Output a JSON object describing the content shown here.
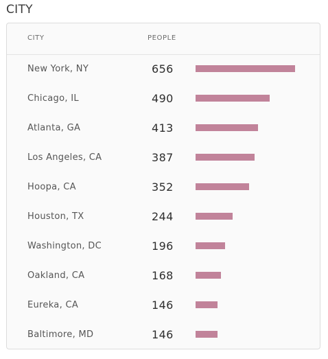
{
  "title": "CITY",
  "table": {
    "col_city": "CITY",
    "col_people": "PEOPLE",
    "bar_color": "#c1839a",
    "max_value": 656,
    "rows": [
      {
        "city": "New York, NY",
        "people": "656",
        "value": 656
      },
      {
        "city": "Chicago, IL",
        "people": "490",
        "value": 490
      },
      {
        "city": "Atlanta, GA",
        "people": "413",
        "value": 413
      },
      {
        "city": "Los Angeles, CA",
        "people": "387",
        "value": 387
      },
      {
        "city": "Hoopa, CA",
        "people": "352",
        "value": 352
      },
      {
        "city": "Houston, TX",
        "people": "244",
        "value": 244
      },
      {
        "city": "Washington, DC",
        "people": "196",
        "value": 196
      },
      {
        "city": "Oakland, CA",
        "people": "168",
        "value": 168
      },
      {
        "city": "Eureka, CA",
        "people": "146",
        "value": 146
      },
      {
        "city": "Baltimore, MD",
        "people": "146",
        "value": 146
      }
    ]
  }
}
